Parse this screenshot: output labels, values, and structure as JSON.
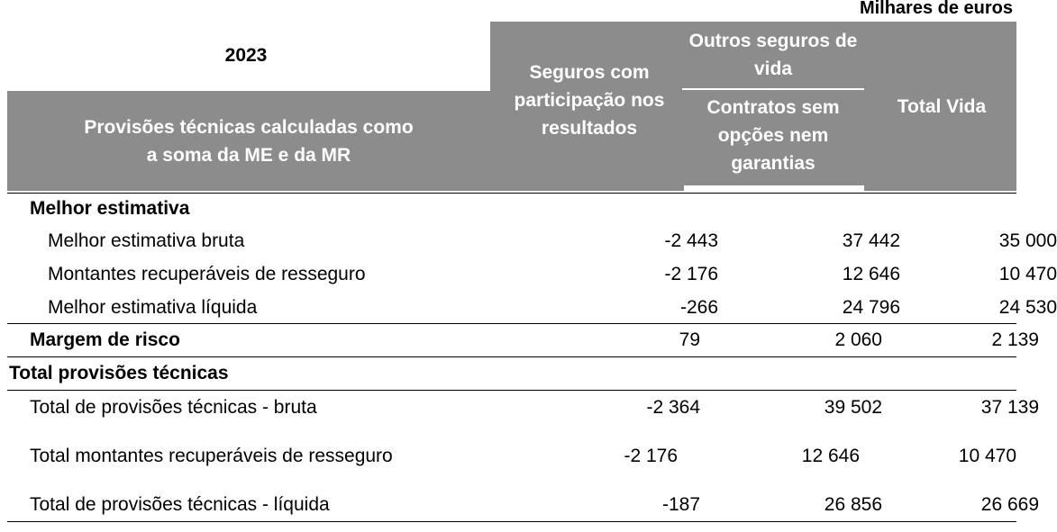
{
  "units": "Milhares de euros",
  "year": "2023",
  "header": {
    "row_label": "Provisões técnicas calculadas como a soma da ME e da MR",
    "col1": "Seguros com participação nos resultados",
    "col2_group": "Outros seguros de vida",
    "col2": "Contratos sem opções nem garantias",
    "col3": "Total Vida"
  },
  "rows": [
    {
      "label": "Melhor estimativa",
      "v1": "",
      "v2": "",
      "v3": ""
    },
    {
      "label": "Melhor estimativa bruta",
      "v1": "-2 443",
      "v2": "37 442",
      "v3": "35 000"
    },
    {
      "label": "Montantes recuperáveis de resseguro",
      "v1": "-2 176",
      "v2": "12 646",
      "v3": "10 470"
    },
    {
      "label": "Melhor estimativa líquida",
      "v1": "-266",
      "v2": "24 796",
      "v3": "24 530"
    },
    {
      "label": "Margem de risco",
      "v1": "79",
      "v2": "2 060",
      "v3": "2 139"
    },
    {
      "label": "Total provisões técnicas",
      "v1": "",
      "v2": "",
      "v3": ""
    },
    {
      "label": "Total de provisões técnicas - bruta",
      "v1": "-2 364",
      "v2": "39 502",
      "v3": "37 139"
    },
    {
      "label": "Total montantes recuperáveis de resseguro",
      "v1": "-2 176",
      "v2": "12 646",
      "v3": "10 470"
    },
    {
      "label": "Total de provisões técnicas - líquida",
      "v1": "-187",
      "v2": "26 856",
      "v3": "26 669"
    }
  ]
}
